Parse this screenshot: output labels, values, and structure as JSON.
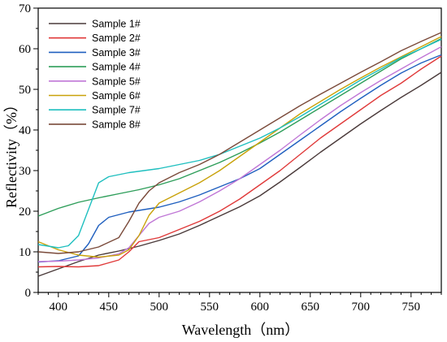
{
  "chart_data": {
    "type": "line",
    "xlabel": "Wavelength（nm）",
    "ylabel": "Reflectivity（%）",
    "xlim": [
      380,
      780
    ],
    "ylim": [
      0,
      70
    ],
    "xticks": [
      400,
      450,
      500,
      550,
      600,
      650,
      700,
      750
    ],
    "yticks": [
      0,
      10,
      20,
      30,
      40,
      50,
      60,
      70
    ],
    "grid": false,
    "legend_position": "top-left",
    "series": [
      {
        "name": "Sample 1#",
        "color": "#4a3a3a",
        "points": [
          [
            380,
            4
          ],
          [
            400,
            5.8
          ],
          [
            420,
            7.6
          ],
          [
            440,
            9.2
          ],
          [
            460,
            10.2
          ],
          [
            480,
            11.4
          ],
          [
            500,
            12.8
          ],
          [
            520,
            14.4
          ],
          [
            540,
            16.5
          ],
          [
            560,
            18.8
          ],
          [
            580,
            21.1
          ],
          [
            600,
            23.8
          ],
          [
            620,
            27.2
          ],
          [
            640,
            30.8
          ],
          [
            660,
            34.5
          ],
          [
            680,
            38.0
          ],
          [
            700,
            41.5
          ],
          [
            720,
            44.8
          ],
          [
            740,
            48.0
          ],
          [
            760,
            51.0
          ],
          [
            780,
            54.2
          ]
        ]
      },
      {
        "name": "Sample 2#",
        "color": "#e03a3a",
        "points": [
          [
            380,
            6.3
          ],
          [
            400,
            6.4
          ],
          [
            420,
            6.3
          ],
          [
            440,
            6.6
          ],
          [
            460,
            8.0
          ],
          [
            470,
            10.0
          ],
          [
            480,
            12.5
          ],
          [
            500,
            13.5
          ],
          [
            520,
            15.5
          ],
          [
            540,
            17.5
          ],
          [
            560,
            20.0
          ],
          [
            580,
            23.0
          ],
          [
            600,
            26.5
          ],
          [
            620,
            30.0
          ],
          [
            640,
            34.0
          ],
          [
            660,
            38.0
          ],
          [
            680,
            41.5
          ],
          [
            700,
            45.0
          ],
          [
            720,
            48.5
          ],
          [
            740,
            51.5
          ],
          [
            760,
            55.0
          ],
          [
            780,
            58.2
          ]
        ]
      },
      {
        "name": "Sample 3#",
        "color": "#1f5fbf",
        "points": [
          [
            380,
            7.5
          ],
          [
            400,
            7.8
          ],
          [
            420,
            9.0
          ],
          [
            430,
            12.0
          ],
          [
            440,
            16.5
          ],
          [
            450,
            18.5
          ],
          [
            470,
            19.8
          ],
          [
            500,
            21.0
          ],
          [
            520,
            22.3
          ],
          [
            540,
            24.0
          ],
          [
            560,
            26.0
          ],
          [
            580,
            28.0
          ],
          [
            600,
            30.5
          ],
          [
            620,
            34.0
          ],
          [
            640,
            37.5
          ],
          [
            660,
            41.0
          ],
          [
            680,
            44.5
          ],
          [
            700,
            47.8
          ],
          [
            720,
            51.0
          ],
          [
            740,
            54.0
          ],
          [
            760,
            56.5
          ],
          [
            780,
            58.5
          ]
        ]
      },
      {
        "name": "Sample 4#",
        "color": "#2e9e5a",
        "points": [
          [
            380,
            18.8
          ],
          [
            400,
            20.7
          ],
          [
            420,
            22.2
          ],
          [
            440,
            23.3
          ],
          [
            460,
            24.3
          ],
          [
            480,
            25.3
          ],
          [
            500,
            26.5
          ],
          [
            520,
            28.0
          ],
          [
            540,
            30.0
          ],
          [
            560,
            32.0
          ],
          [
            580,
            34.3
          ],
          [
            600,
            36.8
          ],
          [
            620,
            39.5
          ],
          [
            640,
            42.5
          ],
          [
            660,
            45.5
          ],
          [
            680,
            48.5
          ],
          [
            700,
            51.5
          ],
          [
            720,
            54.5
          ],
          [
            740,
            57.5
          ],
          [
            760,
            60.0
          ],
          [
            780,
            62.5
          ]
        ]
      },
      {
        "name": "Sample 5#",
        "color": "#c077d6",
        "points": [
          [
            380,
            7.6
          ],
          [
            400,
            7.7
          ],
          [
            420,
            8.0
          ],
          [
            440,
            8.5
          ],
          [
            460,
            9.5
          ],
          [
            470,
            11.0
          ],
          [
            480,
            14.0
          ],
          [
            490,
            17.0
          ],
          [
            500,
            18.5
          ],
          [
            520,
            20.0
          ],
          [
            540,
            22.3
          ],
          [
            560,
            25.0
          ],
          [
            580,
            28.0
          ],
          [
            600,
            31.5
          ],
          [
            620,
            35.0
          ],
          [
            640,
            38.8
          ],
          [
            660,
            42.5
          ],
          [
            680,
            46.0
          ],
          [
            700,
            49.2
          ],
          [
            720,
            52.2
          ],
          [
            740,
            55.0
          ],
          [
            760,
            57.8
          ],
          [
            780,
            60.5
          ]
        ]
      },
      {
        "name": "Sample 6#",
        "color": "#c9a20a",
        "points": [
          [
            380,
            12.5
          ],
          [
            400,
            10.5
          ],
          [
            420,
            9.2
          ],
          [
            440,
            8.7
          ],
          [
            460,
            9.2
          ],
          [
            470,
            10.5
          ],
          [
            480,
            14.0
          ],
          [
            490,
            19.0
          ],
          [
            500,
            22.0
          ],
          [
            520,
            24.5
          ],
          [
            540,
            27.0
          ],
          [
            560,
            30.0
          ],
          [
            580,
            33.5
          ],
          [
            600,
            37.0
          ],
          [
            620,
            40.5
          ],
          [
            640,
            44.0
          ],
          [
            660,
            47.0
          ],
          [
            680,
            50.0
          ],
          [
            700,
            52.8
          ],
          [
            720,
            55.5
          ],
          [
            740,
            58.0
          ],
          [
            760,
            60.5
          ],
          [
            780,
            63.0
          ]
        ]
      },
      {
        "name": "Sample 7#",
        "color": "#1fbfbf",
        "points": [
          [
            380,
            11.8
          ],
          [
            400,
            11.0
          ],
          [
            410,
            11.5
          ],
          [
            420,
            14.0
          ],
          [
            430,
            20.5
          ],
          [
            440,
            27.0
          ],
          [
            450,
            28.5
          ],
          [
            470,
            29.5
          ],
          [
            500,
            30.5
          ],
          [
            520,
            31.5
          ],
          [
            540,
            32.5
          ],
          [
            560,
            34.0
          ],
          [
            580,
            36.0
          ],
          [
            600,
            38.0
          ],
          [
            620,
            40.5
          ],
          [
            640,
            43.3
          ],
          [
            660,
            46.3
          ],
          [
            680,
            49.3
          ],
          [
            700,
            52.3
          ],
          [
            720,
            55.0
          ],
          [
            740,
            57.8
          ],
          [
            760,
            60.0
          ],
          [
            780,
            62.3
          ]
        ]
      },
      {
        "name": "Sample 8#",
        "color": "#7a4a3a",
        "points": [
          [
            380,
            10.0
          ],
          [
            400,
            9.6
          ],
          [
            420,
            10.0
          ],
          [
            440,
            11.2
          ],
          [
            460,
            13.5
          ],
          [
            470,
            17.5
          ],
          [
            480,
            22.0
          ],
          [
            490,
            25.0
          ],
          [
            500,
            27.0
          ],
          [
            520,
            29.5
          ],
          [
            540,
            31.5
          ],
          [
            560,
            34.0
          ],
          [
            580,
            37.0
          ],
          [
            600,
            40.0
          ],
          [
            620,
            43.0
          ],
          [
            640,
            46.0
          ],
          [
            660,
            48.8
          ],
          [
            680,
            51.5
          ],
          [
            700,
            54.2
          ],
          [
            720,
            56.8
          ],
          [
            740,
            59.5
          ],
          [
            760,
            61.8
          ],
          [
            780,
            64.0
          ]
        ]
      }
    ]
  }
}
